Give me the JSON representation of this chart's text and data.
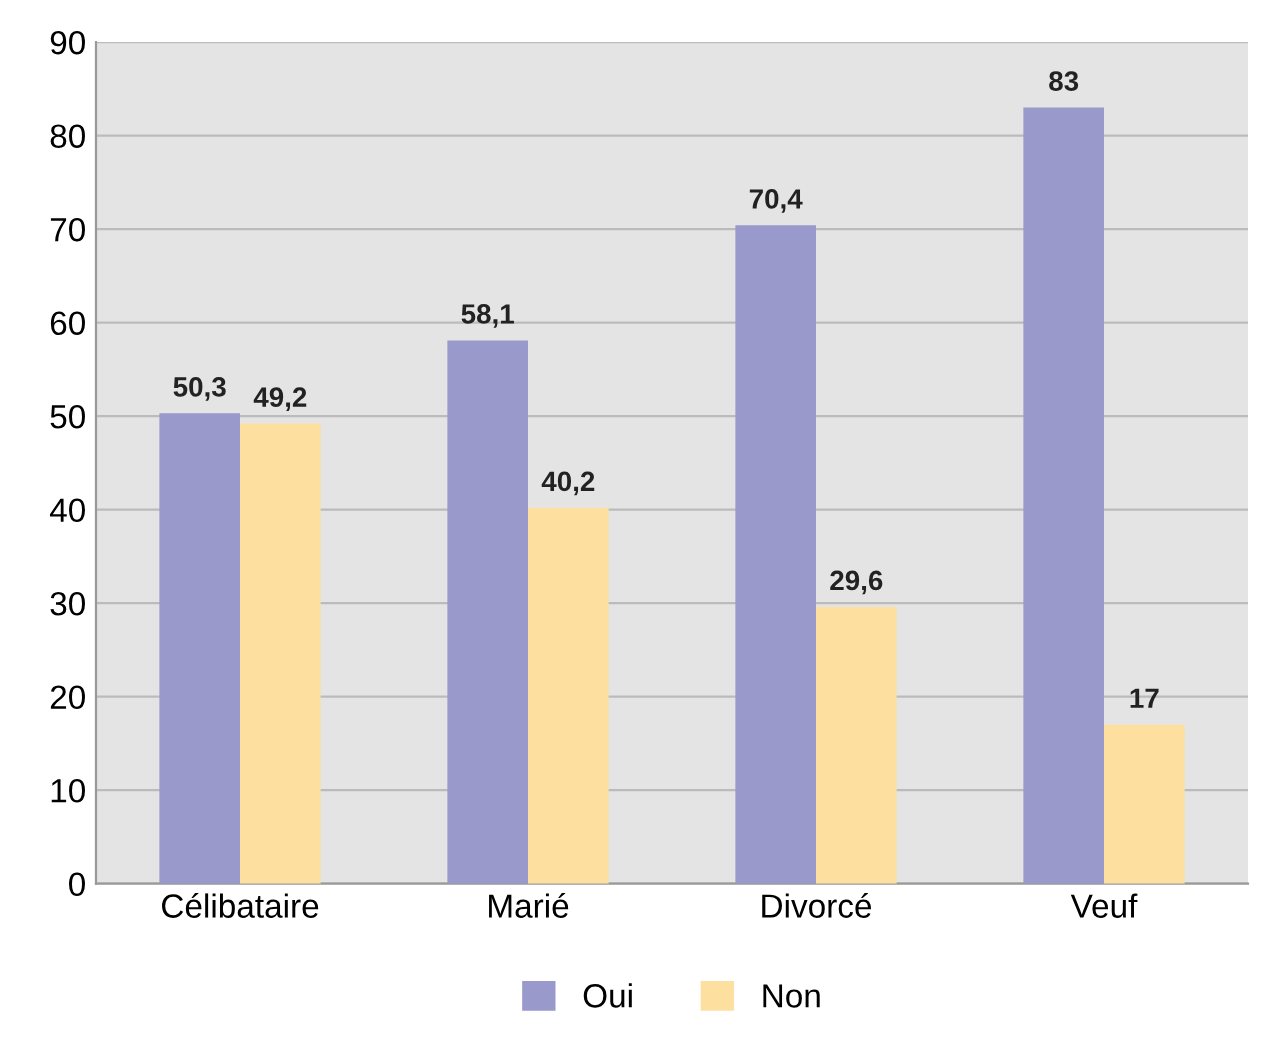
{
  "chart_data": {
    "type": "bar",
    "categories": [
      "Célibataire",
      "Marié",
      "Divorcé",
      "Veuf"
    ],
    "series": [
      {
        "name": "Oui",
        "color": "#9999cc",
        "values": [
          50.3,
          58.1,
          70.4,
          83
        ],
        "value_labels": [
          "50,3",
          "58,1",
          "70,4",
          "83"
        ]
      },
      {
        "name": "Non",
        "color": "#fddf9f",
        "values": [
          49.2,
          40.2,
          29.6,
          17
        ],
        "value_labels": [
          "49,2",
          "40,2",
          "29,6",
          "17"
        ]
      }
    ],
    "ylim": [
      0,
      90
    ],
    "yticks": [
      0,
      10,
      20,
      30,
      40,
      50,
      60,
      70,
      80,
      90
    ],
    "grid": "y",
    "legend": "bottom"
  }
}
